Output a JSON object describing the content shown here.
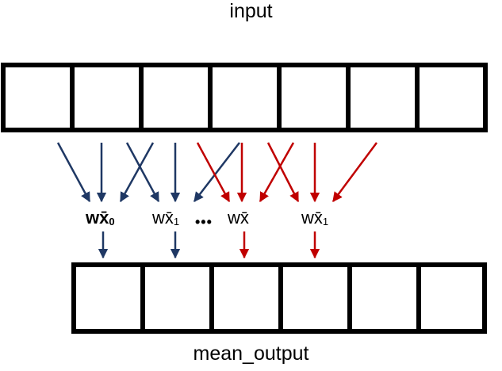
{
  "labels": {
    "top": "input",
    "bottom": "mean_output"
  },
  "input_array": {
    "cell_count": 7
  },
  "output_array": {
    "cell_count": 6
  },
  "weighted_terms": [
    {
      "base": "wx̄",
      "subscript": "0"
    },
    {
      "base": "wx̄",
      "subscript": "1"
    },
    {
      "base": "wx̄",
      "subscript": ""
    },
    {
      "base": "wx̄",
      "subscript": "1"
    }
  ],
  "ellipsis": "•••",
  "colors": {
    "blue_arrows": "#1f3864",
    "red_arrows": "#c00000",
    "box_stroke": "#000000"
  }
}
